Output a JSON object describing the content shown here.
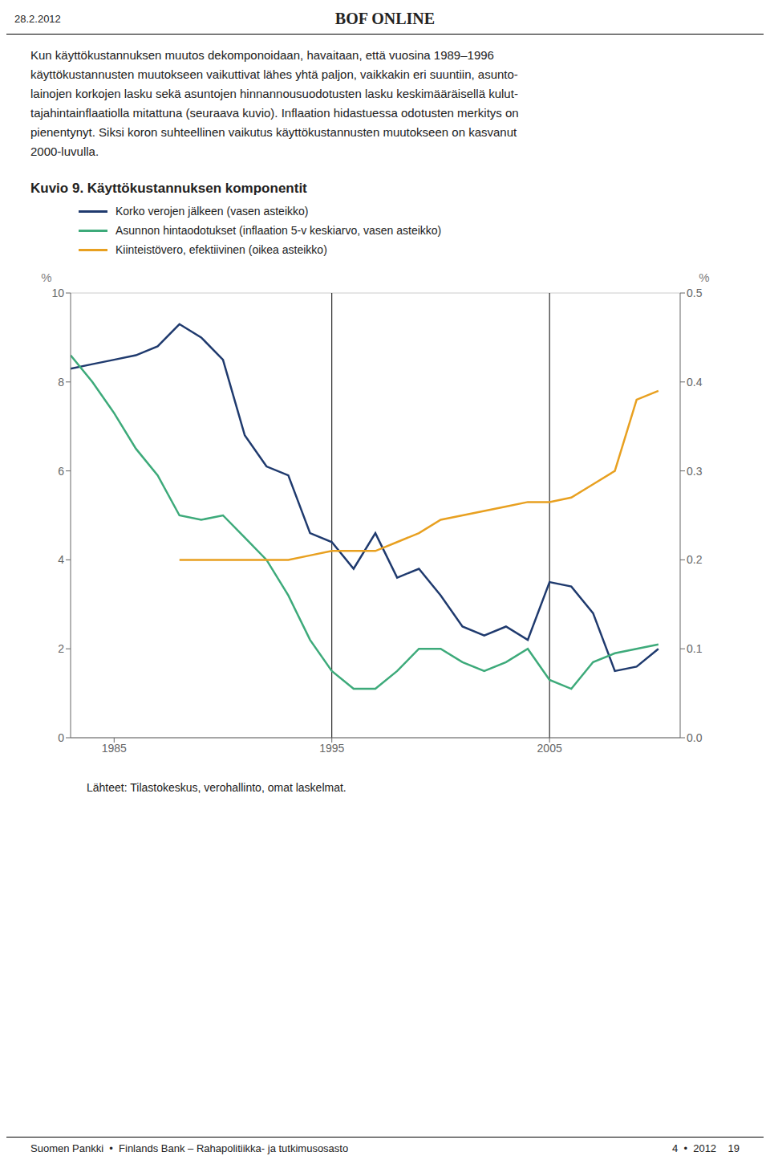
{
  "chart_data": {
    "type": "line",
    "title": "Kuvio 9. Käyttökustannuksen komponentit",
    "annotations": [
      "BOF ONLINE",
      "28.2.2012",
      "Kun käyttökustannuksen muutos dekomponoidaan, havaitaan, että vuosina 1989–1996\nkäyttökustannusten muutokseen vaikuttivat lähes yhtä paljon, vaikkakin eri suuntiin, asunto-\nlainojen korkojen lasku sekä asuntojen hinnannousuodotusten lasku keskimääräisellä kulut-\ntajahintainflaatiolla mitattuna (seuraava kuvio). Inflaation hidastuessa odotusten merkitys on\npienentynyt. Siksi koron suhteellinen vaikutus käyttökustannusten muutokseen on kasvanut\n2000-luvulla.",
      "Lähteet: Tilastokeskus, verohallinto, omat laskelmat.",
      "Suomen Pankki  •  Finlands Bank – Rahapolitiikka- ja tutkimusosasto",
      "4  •  2012    19"
    ],
    "x": [
      1983,
      1984,
      1985,
      1986,
      1987,
      1988,
      1989,
      1990,
      1991,
      1992,
      1993,
      1994,
      1995,
      1996,
      1997,
      1998,
      1999,
      2000,
      2001,
      2002,
      2003,
      2004,
      2005,
      2006,
      2007,
      2008,
      2009,
      2010
    ],
    "xlim": [
      1983,
      2011
    ],
    "xticks": [
      1985,
      1995,
      2005
    ],
    "ylim": [
      0,
      10
    ],
    "yticks": [
      0,
      2,
      4,
      6,
      8,
      10
    ],
    "y2lim": [
      0,
      0.5
    ],
    "y2ticks": [
      {
        "value": 0,
        "label": "0.0"
      },
      0.1,
      0.2,
      0.3,
      0.4,
      0.5
    ],
    "y_label": "%",
    "y2_label": "%",
    "grid": true,
    "legend": "top",
    "vlines": [
      1995,
      2005
    ],
    "series": [
      {
        "name": "Korko verojen jälkeen (vasen asteikko)",
        "color": "#1F3A6E",
        "values": [
          8.3,
          8.4,
          8.5,
          8.6,
          8.8,
          9.3,
          9.0,
          8.5,
          6.8,
          6.1,
          5.9,
          4.6,
          4.4,
          3.8,
          4.6,
          3.6,
          3.8,
          3.2,
          2.5,
          2.3,
          2.5,
          2.2,
          3.5,
          3.4,
          2.8,
          1.5,
          1.6,
          2.0
        ]
      },
      {
        "name": "Asunnon hintaodotukset (inflaation 5-v keskiarvo, vasen asteikko)",
        "color": "#3DAA7A",
        "values": [
          8.6,
          8.0,
          7.3,
          6.5,
          5.9,
          5.0,
          4.9,
          5.0,
          4.5,
          4.0,
          3.2,
          2.2,
          1.5,
          1.1,
          1.1,
          1.5,
          2.0,
          2.0,
          1.7,
          1.5,
          1.7,
          2.0,
          1.3,
          1.1,
          1.7,
          1.9,
          2.0,
          2.1
        ]
      },
      {
        "name": "Kiinteistövero, efektiivinen (oikea asteikko)",
        "color": "#E8A020",
        "axis": "y2",
        "values": [
          null,
          null,
          null,
          null,
          null,
          0.2,
          0.2,
          0.2,
          0.2,
          0.2,
          0.2,
          0.205,
          0.21,
          0.21,
          0.21,
          0.22,
          0.23,
          0.245,
          0.25,
          0.255,
          0.26,
          0.265,
          0.265,
          0.27,
          0.285,
          0.3,
          0.38,
          0.39
        ]
      }
    ]
  }
}
